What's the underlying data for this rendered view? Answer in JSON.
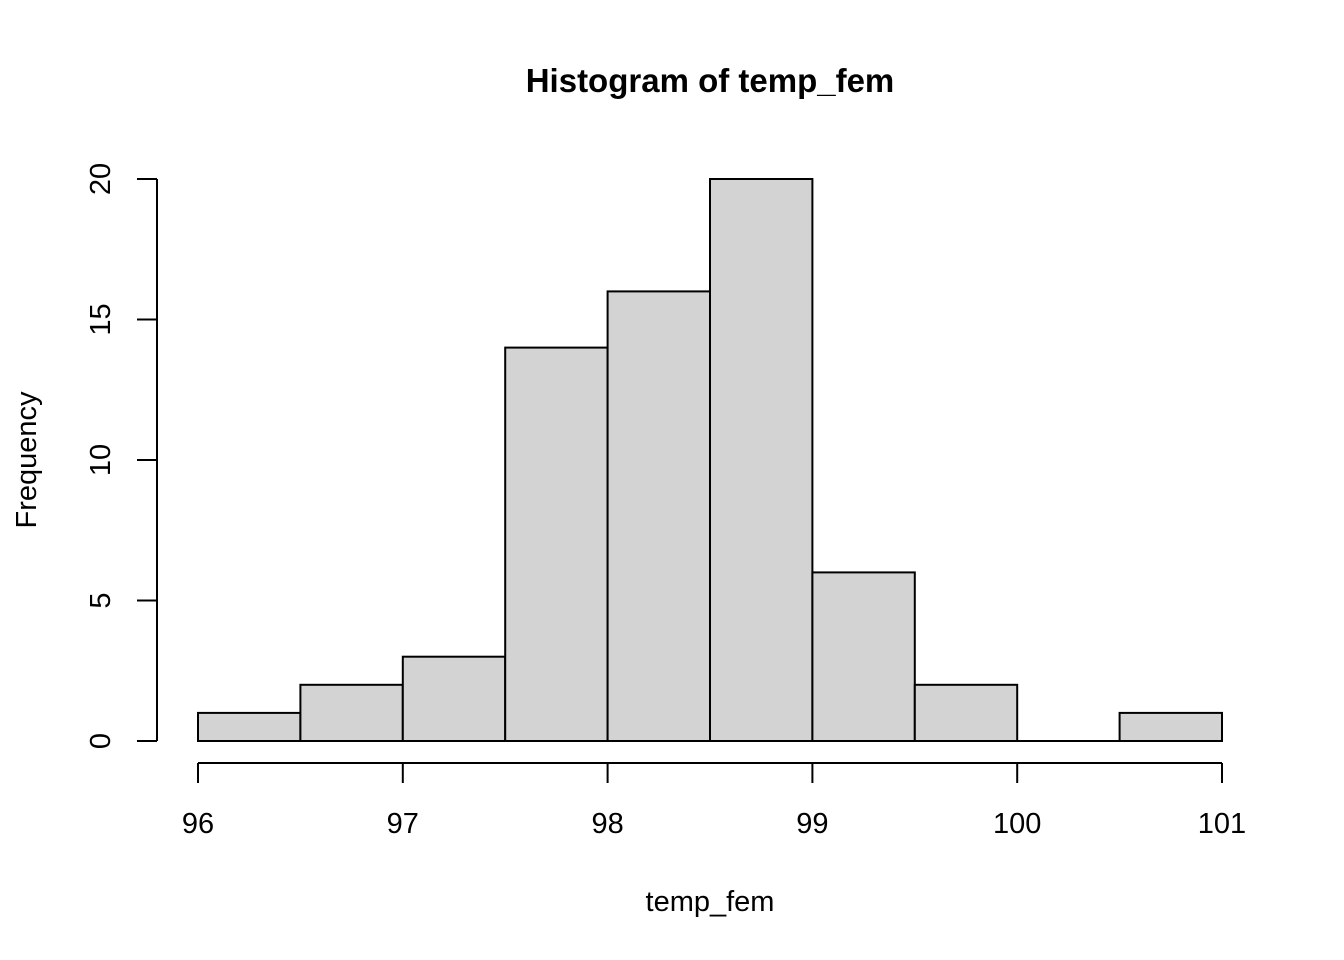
{
  "chart_data": {
    "type": "bar",
    "title": "Histogram of temp_fem",
    "xlabel": "temp_fem",
    "ylabel": "Frequency",
    "bins": [
      {
        "start": 96.0,
        "end": 96.5,
        "count": 1
      },
      {
        "start": 96.5,
        "end": 97.0,
        "count": 2
      },
      {
        "start": 97.0,
        "end": 97.5,
        "count": 3
      },
      {
        "start": 97.5,
        "end": 98.0,
        "count": 14
      },
      {
        "start": 98.0,
        "end": 98.5,
        "count": 16
      },
      {
        "start": 98.5,
        "end": 99.0,
        "count": 20
      },
      {
        "start": 99.0,
        "end": 99.5,
        "count": 6
      },
      {
        "start": 99.5,
        "end": 100.0,
        "count": 2
      },
      {
        "start": 100.0,
        "end": 100.5,
        "count": 0
      },
      {
        "start": 100.5,
        "end": 101.0,
        "count": 1
      }
    ],
    "x_ticks": [
      96,
      97,
      98,
      99,
      100,
      101
    ],
    "y_ticks": [
      0,
      5,
      10,
      15,
      20
    ],
    "xlim": [
      96,
      101
    ],
    "ylim": [
      0,
      20
    ],
    "bar_color": "#d3d3d3",
    "grid": false,
    "legend": "none"
  }
}
